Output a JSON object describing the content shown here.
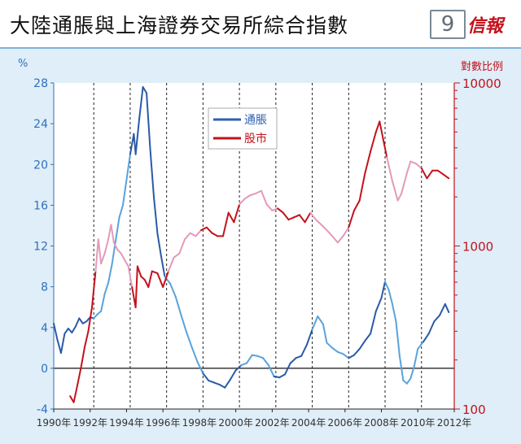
{
  "header": {
    "title": "大陸通脹與上海證券交易所綜合指數",
    "chart_number": "9",
    "logo_text": "信報"
  },
  "chart_data": {
    "type": "line",
    "left_axis": {
      "unit_label": "%",
      "ticks": [
        -4,
        0,
        4,
        8,
        12,
        16,
        20,
        24,
        28
      ],
      "range": [
        -4,
        28
      ],
      "color": "#2f6fbf"
    },
    "right_axis": {
      "label": "對數比例",
      "scale": "log",
      "ticks": [
        100,
        1000,
        10000
      ],
      "range": [
        100,
        10000
      ],
      "color": "#c4121c"
    },
    "x_axis": {
      "range": [
        1990,
        2012
      ],
      "ticks": [
        "1990年",
        "1992年",
        "1994年",
        "1996年",
        "1998年",
        "2000年",
        "2002年",
        "2004年",
        "2006年",
        "2008年",
        "2010年",
        "2012年"
      ],
      "tick_values": [
        1990,
        1992,
        1994,
        1996,
        1998,
        2000,
        2002,
        2004,
        2006,
        2008,
        2010,
        2012
      ],
      "dashed_gridlines_at": [
        1992.2,
        1994.2,
        1996.2,
        1998.2,
        2000.2,
        2002.2,
        2004.2,
        2006.2,
        2008.2,
        2010.2
      ]
    },
    "legend": {
      "placement": "top-center",
      "entries": [
        {
          "name": "通脹",
          "color": "#2f5fb0"
        },
        {
          "name": "股市",
          "color": "#c4121c"
        }
      ]
    },
    "series": [
      {
        "name": "通脹",
        "axis": "left",
        "color_dark": "#2a5aa8",
        "color_light": "#58a3dd",
        "points": [
          [
            1990.0,
            4.4
          ],
          [
            1990.2,
            2.8
          ],
          [
            1990.4,
            1.5
          ],
          [
            1990.6,
            3.4
          ],
          [
            1990.8,
            3.9
          ],
          [
            1991.0,
            3.5
          ],
          [
            1991.2,
            4.1
          ],
          [
            1991.4,
            4.9
          ],
          [
            1991.6,
            4.4
          ],
          [
            1991.8,
            4.6
          ],
          [
            1992.0,
            5.0
          ],
          [
            1992.2,
            4.9
          ],
          [
            1992.4,
            5.3
          ],
          [
            1992.6,
            5.6
          ],
          [
            1992.8,
            7.3
          ],
          [
            1993.0,
            8.4
          ],
          [
            1993.2,
            10.2
          ],
          [
            1993.4,
            12.5
          ],
          [
            1993.6,
            14.8
          ],
          [
            1993.8,
            16.0
          ],
          [
            1994.0,
            18.5
          ],
          [
            1994.2,
            21.0
          ],
          [
            1994.4,
            23.0
          ],
          [
            1994.5,
            21.0
          ],
          [
            1994.7,
            24.5
          ],
          [
            1994.9,
            27.6
          ],
          [
            1995.1,
            27.0
          ],
          [
            1995.3,
            21.5
          ],
          [
            1995.5,
            16.8
          ],
          [
            1995.7,
            13.2
          ],
          [
            1995.9,
            11.0
          ],
          [
            1996.1,
            9.0
          ],
          [
            1996.4,
            8.3
          ],
          [
            1996.7,
            7.0
          ],
          [
            1997.0,
            5.2
          ],
          [
            1997.3,
            3.5
          ],
          [
            1997.6,
            2.0
          ],
          [
            1997.9,
            0.6
          ],
          [
            1998.2,
            -0.5
          ],
          [
            1998.5,
            -1.2
          ],
          [
            1998.8,
            -1.4
          ],
          [
            1999.1,
            -1.6
          ],
          [
            1999.4,
            -1.9
          ],
          [
            1999.7,
            -1.1
          ],
          [
            2000.0,
            -0.2
          ],
          [
            2000.3,
            0.3
          ],
          [
            2000.6,
            0.5
          ],
          [
            2000.9,
            1.3
          ],
          [
            2001.2,
            1.2
          ],
          [
            2001.5,
            1.0
          ],
          [
            2001.8,
            0.3
          ],
          [
            2002.1,
            -0.8
          ],
          [
            2002.4,
            -0.9
          ],
          [
            2002.7,
            -0.6
          ],
          [
            2003.0,
            0.5
          ],
          [
            2003.3,
            1.0
          ],
          [
            2003.6,
            1.2
          ],
          [
            2003.9,
            2.3
          ],
          [
            2004.2,
            3.8
          ],
          [
            2004.5,
            5.1
          ],
          [
            2004.8,
            4.3
          ],
          [
            2005.0,
            2.5
          ],
          [
            2005.3,
            2.0
          ],
          [
            2005.6,
            1.6
          ],
          [
            2005.9,
            1.4
          ],
          [
            2006.2,
            1.0
          ],
          [
            2006.5,
            1.3
          ],
          [
            2006.8,
            1.9
          ],
          [
            2007.1,
            2.7
          ],
          [
            2007.4,
            3.4
          ],
          [
            2007.7,
            5.6
          ],
          [
            2008.0,
            6.9
          ],
          [
            2008.2,
            8.5
          ],
          [
            2008.4,
            7.7
          ],
          [
            2008.6,
            6.3
          ],
          [
            2008.8,
            4.6
          ],
          [
            2009.0,
            1.2
          ],
          [
            2009.2,
            -1.2
          ],
          [
            2009.4,
            -1.5
          ],
          [
            2009.6,
            -1.0
          ],
          [
            2009.8,
            0.2
          ],
          [
            2010.0,
            1.9
          ],
          [
            2010.3,
            2.6
          ],
          [
            2010.6,
            3.4
          ],
          [
            2010.9,
            4.6
          ],
          [
            2011.2,
            5.2
          ],
          [
            2011.5,
            6.3
          ],
          [
            2011.7,
            5.5
          ]
        ]
      },
      {
        "name": "股市",
        "axis": "right",
        "color_dark": "#c4121c",
        "color_light": "#e39aba",
        "points": [
          [
            1990.9,
            120
          ],
          [
            1991.1,
            110
          ],
          [
            1991.3,
            140
          ],
          [
            1991.5,
            180
          ],
          [
            1991.7,
            240
          ],
          [
            1991.9,
            300
          ],
          [
            1992.1,
            420
          ],
          [
            1992.3,
            700
          ],
          [
            1992.45,
            1100
          ],
          [
            1992.6,
            780
          ],
          [
            1992.8,
            900
          ],
          [
            1993.0,
            1100
          ],
          [
            1993.15,
            1350
          ],
          [
            1993.3,
            1050
          ],
          [
            1993.5,
            950
          ],
          [
            1993.7,
            900
          ],
          [
            1993.9,
            820
          ],
          [
            1994.1,
            750
          ],
          [
            1994.3,
            560
          ],
          [
            1994.5,
            420
          ],
          [
            1994.6,
            750
          ],
          [
            1994.8,
            650
          ],
          [
            1995.0,
            620
          ],
          [
            1995.2,
            560
          ],
          [
            1995.4,
            700
          ],
          [
            1995.7,
            680
          ],
          [
            1996.0,
            560
          ],
          [
            1996.3,
            700
          ],
          [
            1996.6,
            850
          ],
          [
            1996.9,
            900
          ],
          [
            1997.2,
            1100
          ],
          [
            1997.5,
            1200
          ],
          [
            1997.8,
            1150
          ],
          [
            1998.1,
            1250
          ],
          [
            1998.4,
            1300
          ],
          [
            1998.7,
            1200
          ],
          [
            1999.0,
            1150
          ],
          [
            1999.3,
            1150
          ],
          [
            1999.6,
            1600
          ],
          [
            1999.9,
            1400
          ],
          [
            2000.2,
            1800
          ],
          [
            2000.5,
            1950
          ],
          [
            2000.8,
            2050
          ],
          [
            2001.1,
            2100
          ],
          [
            2001.4,
            2180
          ],
          [
            2001.7,
            1800
          ],
          [
            2002.0,
            1650
          ],
          [
            2002.3,
            1700
          ],
          [
            2002.6,
            1600
          ],
          [
            2002.9,
            1450
          ],
          [
            2003.2,
            1500
          ],
          [
            2003.5,
            1550
          ],
          [
            2003.8,
            1400
          ],
          [
            2004.1,
            1600
          ],
          [
            2004.4,
            1450
          ],
          [
            2004.7,
            1350
          ],
          [
            2005.0,
            1250
          ],
          [
            2005.3,
            1150
          ],
          [
            2005.6,
            1050
          ],
          [
            2005.9,
            1150
          ],
          [
            2006.2,
            1300
          ],
          [
            2006.5,
            1650
          ],
          [
            2006.8,
            1900
          ],
          [
            2007.1,
            2800
          ],
          [
            2007.4,
            3800
          ],
          [
            2007.7,
            5000
          ],
          [
            2007.9,
            5800
          ],
          [
            2008.1,
            4500
          ],
          [
            2008.3,
            3500
          ],
          [
            2008.6,
            2500
          ],
          [
            2008.9,
            1900
          ],
          [
            2009.1,
            2100
          ],
          [
            2009.4,
            2800
          ],
          [
            2009.6,
            3300
          ],
          [
            2009.9,
            3200
          ],
          [
            2010.2,
            3000
          ],
          [
            2010.5,
            2600
          ],
          [
            2010.8,
            2900
          ],
          [
            2011.1,
            2900
          ],
          [
            2011.4,
            2750
          ],
          [
            2011.7,
            2600
          ]
        ]
      }
    ]
  }
}
